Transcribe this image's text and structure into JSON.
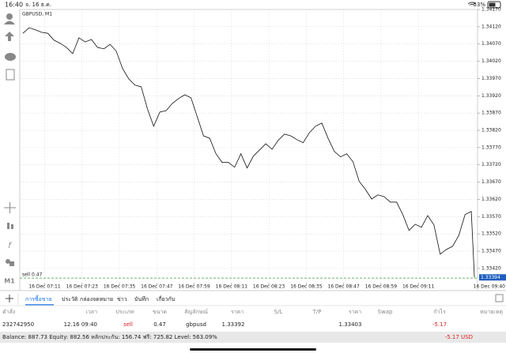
{
  "status_bar": {
    "time": "16:40",
    "date": "จ. 16 ธ.ค.",
    "battery": "53%"
  },
  "chart_data": {
    "type": "line",
    "title": "GBPUSD, M1",
    "color": "#111111",
    "grid": true,
    "x": [
      "16 Dec 07:04",
      "16 Dec 07:06",
      "16 Dec 07:08",
      "16 Dec 07:10",
      "16 Dec 07:12",
      "16 Dec 07:14",
      "16 Dec 07:16",
      "16 Dec 07:18",
      "16 Dec 07:20",
      "16 Dec 07:22",
      "16 Dec 07:24",
      "16 Dec 07:26",
      "16 Dec 07:28",
      "16 Dec 07:30",
      "16 Dec 07:32",
      "16 Dec 07:34",
      "16 Dec 07:36",
      "16 Dec 07:38",
      "16 Dec 07:40",
      "16 Dec 07:42",
      "16 Dec 07:44",
      "16 Dec 07:46",
      "16 Dec 07:48",
      "16 Dec 07:50",
      "16 Dec 07:52",
      "16 Dec 07:54",
      "16 Dec 07:56",
      "16 Dec 07:58",
      "16 Dec 08:00",
      "16 Dec 08:02",
      "16 Dec 08:04",
      "16 Dec 08:06",
      "16 Dec 08:08",
      "16 Dec 08:10",
      "16 Dec 08:12",
      "16 Dec 08:14",
      "16 Dec 08:16",
      "16 Dec 08:18",
      "16 Dec 08:20",
      "16 Dec 08:22",
      "16 Dec 08:24",
      "16 Dec 08:26",
      "16 Dec 08:28",
      "16 Dec 08:30",
      "16 Dec 08:32",
      "16 Dec 08:34",
      "16 Dec 08:36",
      "16 Dec 08:38",
      "16 Dec 08:40",
      "16 Dec 08:42",
      "16 Dec 08:44",
      "16 Dec 08:46",
      "16 Dec 08:48",
      "16 Dec 08:50",
      "16 Dec 08:52",
      "16 Dec 08:54",
      "16 Dec 08:56",
      "16 Dec 08:58",
      "16 Dec 09:00",
      "16 Dec 09:02",
      "16 Dec 09:04",
      "16 Dec 09:06",
      "16 Dec 09:08",
      "16 Dec 09:10",
      "16 Dec 09:12",
      "16 Dec 09:14",
      "16 Dec 09:16",
      "16 Dec 09:18",
      "16 Dec 09:20",
      "16 Dec 09:22",
      "16 Dec 09:24",
      "16 Dec 09:26",
      "16 Dec 09:28",
      "16 Dec 09:29"
    ],
    "values": [
      1.34101,
      1.34117,
      1.34111,
      1.34104,
      1.34101,
      1.34081,
      1.34072,
      1.3406,
      1.34042,
      1.34088,
      1.34076,
      1.34083,
      1.3406,
      1.34056,
      1.34069,
      1.34049,
      1.33999,
      1.33969,
      1.33951,
      1.33946,
      1.33882,
      1.33832,
      1.33873,
      1.33877,
      1.33898,
      1.33912,
      1.33923,
      1.33914,
      1.33859,
      1.33804,
      1.33797,
      1.33752,
      1.33727,
      1.33727,
      1.33713,
      1.33752,
      1.33711,
      1.33745,
      1.33763,
      1.33781,
      1.33765,
      1.33791,
      1.33809,
      1.33804,
      1.33793,
      1.33784,
      1.33813,
      1.33832,
      1.33841,
      1.33797,
      1.33759,
      1.33743,
      1.33752,
      1.33729,
      1.33672,
      1.33649,
      1.33621,
      1.33633,
      1.33628,
      1.33612,
      1.33612,
      1.33576,
      1.3353,
      1.33548,
      1.33539,
      1.33573,
      1.33546,
      1.33461,
      1.33475,
      1.33484,
      1.33516,
      1.33576,
      1.33585,
      1.33394
    ],
    "xlim": [
      "16 Dec 07:03",
      "16 Dec 09:30"
    ],
    "xticks": [
      "16 Dec 07:11",
      "16 Dec 07:23",
      "16 Dec 07:35",
      "16 Dec 07:47",
      "16 Dec 07:59",
      "16 Dec 08:11",
      "16 Dec 08:23",
      "16 Dec 08:35",
      "16 Dec 08:47",
      "16 Dec 08:59",
      "16 Dec 09:11"
    ],
    "ylim": [
      1.3339,
      1.3417
    ],
    "yticks": [
      {
        "value": 1.3417,
        "label": "1.34170"
      },
      {
        "value": 1.3412,
        "label": "1.34120"
      },
      {
        "value": 1.3407,
        "label": "1.34070"
      },
      {
        "value": 1.3402,
        "label": "1.34020"
      },
      {
        "value": 1.3397,
        "label": "1.33970"
      },
      {
        "value": 1.3392,
        "label": "1.33920"
      },
      {
        "value": 1.3387,
        "label": "1.33870"
      },
      {
        "value": 1.3382,
        "label": "1.33820"
      },
      {
        "value": 1.3377,
        "label": "1.33770"
      },
      {
        "value": 1.3372,
        "label": "1.33720"
      },
      {
        "value": 1.3367,
        "label": "1.33670"
      },
      {
        "value": 1.3362,
        "label": "1.33620"
      },
      {
        "value": 1.3357,
        "label": "1.33570"
      },
      {
        "value": 1.3352,
        "label": "1.33520"
      },
      {
        "value": 1.3347,
        "label": "1.33470"
      },
      {
        "value": 1.3342,
        "label": "1.33420"
      }
    ],
    "current_price": 1.33394,
    "current_time_label": "16 Dec 09:40",
    "position": {
      "label": "sell 0.47",
      "price": 1.33392
    }
  },
  "toolbox": {
    "timeframe": "M1"
  },
  "tabs": [
    "การซื้อขาย",
    "ประวัติ",
    "กล่องจดหมาย",
    "ข่าว",
    "บันทึก",
    "เกี่ยวกับ"
  ],
  "table": {
    "headers": [
      "คำสั่ง",
      "เวลา",
      "ประเภท",
      "ขนาด",
      "สัญลักษณ์",
      "ราคา",
      "S/L",
      "T/P",
      "ราคา",
      "Swap",
      "กำไร",
      "หมายเหตุ"
    ],
    "rows": [
      {
        "order": "232742950",
        "time": "12.16 09:40",
        "type": "sell",
        "size": "0.47",
        "symbol": "gbpusd",
        "price": "1.33392",
        "current_price": "1.33403",
        "profit": "-5.17"
      }
    ]
  },
  "footer": {
    "summary": "Balance: 887.73 Equity: 882.56 หลักประกัน: 156.74 ฟรี: 725.82 Level: 563.09%",
    "profit": "-5.17 USD"
  }
}
